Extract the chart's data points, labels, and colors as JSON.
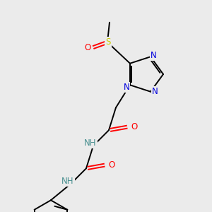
{
  "bg_color": "#ebebeb",
  "atom_colors": {
    "C": "#000000",
    "N": "#0000dd",
    "O": "#ff0000",
    "S": "#cccc00",
    "H": "#4a9090"
  },
  "figsize": [
    3.0,
    3.0
  ],
  "dpi": 100,
  "lw": 1.4,
  "fs": 8.5,
  "fs_small": 7.5
}
